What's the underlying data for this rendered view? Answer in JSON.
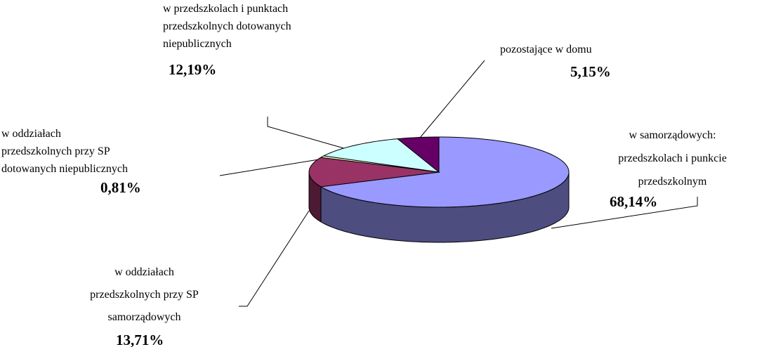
{
  "chart_data": {
    "type": "pie",
    "categories": [
      "w samorządowych:\nprzedszkolach i punkcie\nprzedszkolnym",
      "w oddziałach\nprzedszkolnych przy SP\nsamorządowych",
      "w oddziałach\nprzedszkolnych przy SP\ndotowanych niepublicznych",
      "w przedszkolach i punktach\nprzedszkolnych dotowanych\nniepublicznych",
      "pozostające w domu"
    ],
    "values": [
      68.14,
      13.71,
      0.81,
      12.19,
      5.15
    ],
    "value_labels": [
      "68,14%",
      "13,71%",
      "0,81%",
      "12,19%",
      "5,15%"
    ],
    "colors": [
      "#9999ff",
      "#993366",
      "#ffffcc",
      "#ccffff",
      "#660066"
    ]
  }
}
